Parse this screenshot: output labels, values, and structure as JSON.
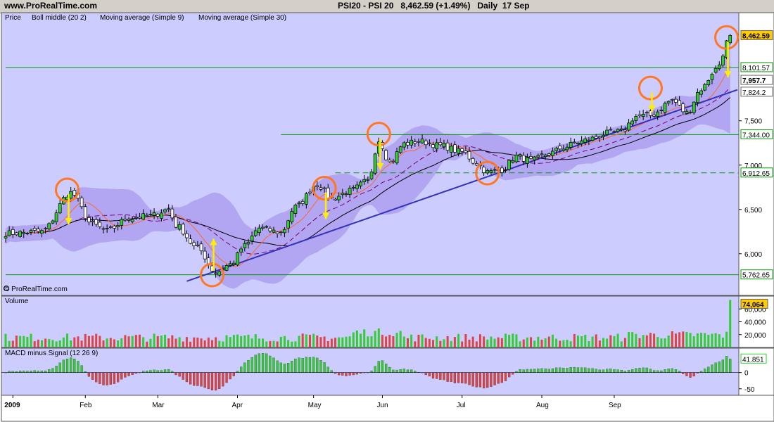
{
  "header": {
    "site": "www.ProRealTime.com",
    "symbol": "PSI20 - PSI 20",
    "last": "8,462.59 (+1.49%)",
    "period": "Daily  17 Sep"
  },
  "legend": {
    "price": "Price",
    "boll": "Boll middle (20 2)",
    "ma9": "Moving average (Simple 9)",
    "ma30": "Moving average (Simple 30)"
  },
  "watermark": "© ProRealTime.com",
  "volume_label": "Volume",
  "macd_label": "MACD minus Signal (12 26 9)",
  "colors": {
    "panel_bg": "#ccccff",
    "band": "#aa99ee",
    "up": "#33cc33",
    "down": "#dd4444",
    "ma9": "#ff6633",
    "ma30": "#000000",
    "boll_mid": "#770077",
    "trend": "#3333bb",
    "annot_arrow": "#ffee00",
    "annot_circle": "#ff7722",
    "hline": "#009900"
  },
  "chart_data": {
    "type": "candlestick",
    "x_month_labels": [
      "2009",
      "Feb",
      "Mar",
      "Apr",
      "May",
      "Jun",
      "Jul",
      "Aug",
      "Sep"
    ],
    "price_ticks": [
      "7,500",
      "7,000",
      "6,500",
      "6,000"
    ],
    "volume_ticks": [
      "60,000",
      "40,000",
      "20,000"
    ],
    "macd_ticks": [
      "0",
      "-50"
    ],
    "price_waypoints": [
      [
        0,
        6230
      ],
      [
        10,
        6250
      ],
      [
        18,
        6690
      ],
      [
        24,
        6330
      ],
      [
        28,
        6260
      ],
      [
        34,
        6400
      ],
      [
        40,
        6430
      ],
      [
        45,
        6500
      ],
      [
        47,
        6320
      ],
      [
        53,
        6060
      ],
      [
        58,
        5790
      ],
      [
        62,
        5880
      ],
      [
        66,
        6090
      ],
      [
        70,
        6290
      ],
      [
        76,
        6240
      ],
      [
        80,
        6530
      ],
      [
        86,
        6780
      ],
      [
        90,
        6620
      ],
      [
        95,
        6710
      ],
      [
        100,
        6820
      ],
      [
        103,
        7280
      ],
      [
        106,
        7030
      ],
      [
        110,
        7240
      ],
      [
        114,
        7270
      ],
      [
        120,
        7220
      ],
      [
        126,
        7150
      ],
      [
        130,
        7020
      ],
      [
        133,
        6920
      ],
      [
        137,
        6950
      ],
      [
        141,
        7100
      ],
      [
        145,
        7050
      ],
      [
        150,
        7130
      ],
      [
        154,
        7200
      ],
      [
        158,
        7260
      ],
      [
        162,
        7300
      ],
      [
        166,
        7360
      ],
      [
        170,
        7380
      ],
      [
        174,
        7550
      ],
      [
        178,
        7560
      ],
      [
        184,
        7730
      ],
      [
        188,
        7590
      ],
      [
        192,
        7860
      ],
      [
        196,
        8080
      ],
      [
        200,
        8440
      ]
    ],
    "last_bar": {
      "open": 8380,
      "high": 8480,
      "low": 8360,
      "close": 8462.59
    },
    "price_labels": [
      {
        "text": "8,462.59",
        "value": 8462.59,
        "style": "last"
      },
      {
        "text": "8,101.57",
        "value": 8101.57,
        "style": "line"
      },
      {
        "text": "7,957.7",
        "value": 7957.7,
        "style": "ma9"
      },
      {
        "text": "7,824.2",
        "value": 7824.2,
        "style": "ma30"
      },
      {
        "text": "7,344.00",
        "value": 7344,
        "style": "line"
      },
      {
        "text": "6,912.65",
        "value": 6912.65,
        "style": "line"
      },
      {
        "text": "5,762.65",
        "value": 5762.65,
        "style": "line"
      }
    ],
    "horizontal_lines": [
      {
        "value": 8101.57,
        "style": "solid",
        "from_day": 0
      },
      {
        "value": 7344,
        "style": "solid",
        "from_day": 76
      },
      {
        "value": 6912.65,
        "style": "dashed",
        "from_day": 91
      },
      {
        "value": 5762.65,
        "style": "solid",
        "from_day": 0
      }
    ],
    "trendline": {
      "start_day": 50,
      "start_value": 5690,
      "end_day": 200,
      "end_value": 7850
    },
    "volume_last": "74,064",
    "volume_last_value": 74064,
    "macd_last": "41.851",
    "macd_last_value": 41.85,
    "annotations": [
      {
        "day": 17,
        "value": 6720,
        "arrow_to": 6330
      },
      {
        "day": 57,
        "value": 5760,
        "arrow_up_to": 6170
      },
      {
        "day": 103,
        "value": 7350,
        "arrow_to": 6950
      },
      {
        "day": 88,
        "value": 6740,
        "arrow_to": 6390
      },
      {
        "day": 133,
        "value": 6910
      },
      {
        "day": 178,
        "value": 7870,
        "arrow_to": 7600
      },
      {
        "day": 199,
        "value": 8440,
        "arrow_to": 7990
      }
    ]
  }
}
